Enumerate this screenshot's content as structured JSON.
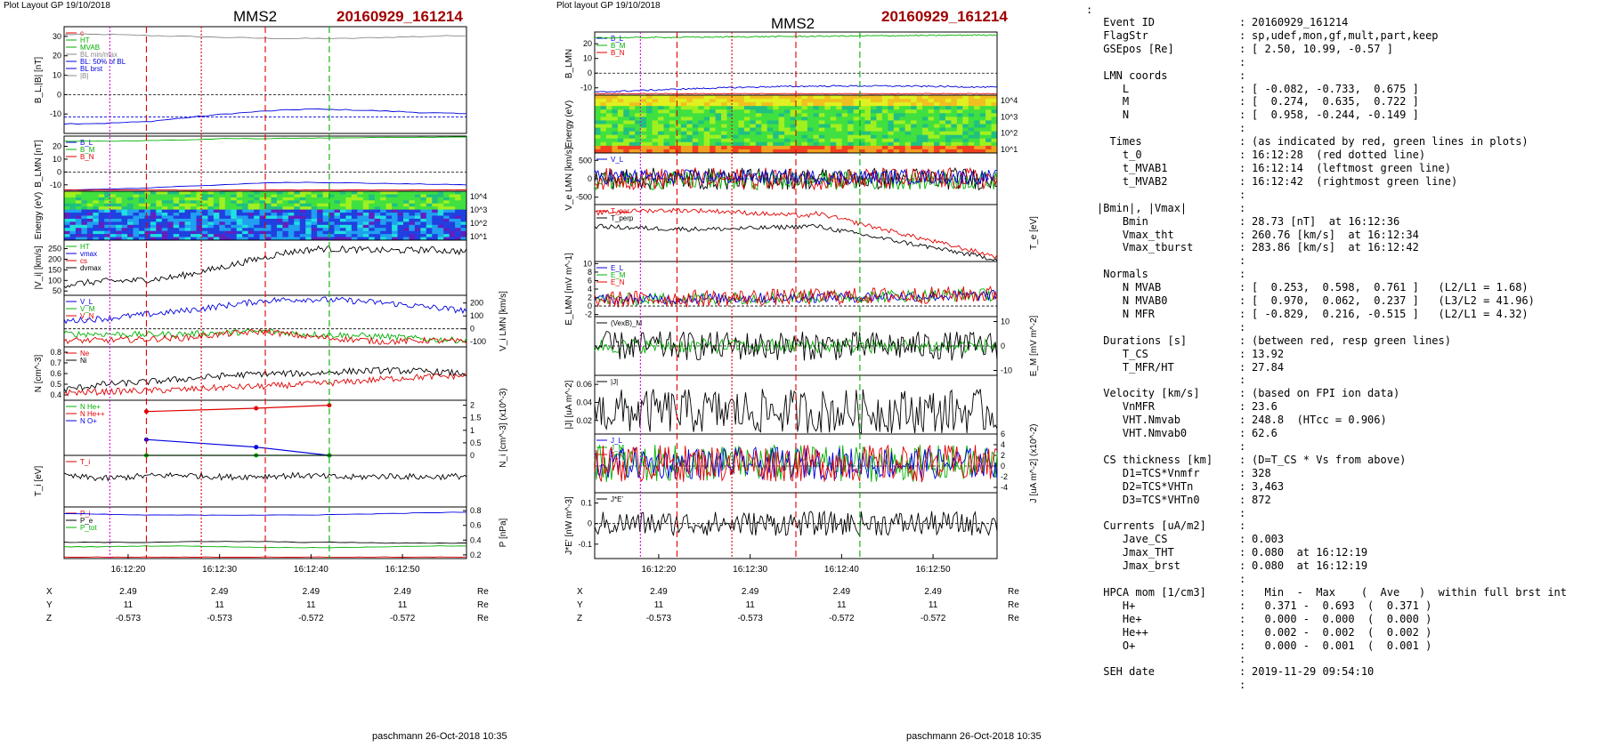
{
  "left": {
    "layout_label": "Plot Layout GP 19/10/2018",
    "spacecraft": "MMS2",
    "event": "20160929_161214",
    "footer": "paschmann 26-Oct-2018 10:35",
    "time_ticks": [
      "16:12:20",
      "16:12:30",
      "16:12:40",
      "16:12:50"
    ],
    "ephem": [
      {
        "name": "X",
        "values": [
          "2.49",
          "2.49",
          "2.49",
          "2.49"
        ],
        "unit": "Re"
      },
      {
        "name": "Y",
        "values": [
          "11",
          "11",
          "11",
          "11"
        ],
        "unit": "Re"
      },
      {
        "name": "Z",
        "values": [
          "-0.573",
          "-0.573",
          "-0.572",
          "-0.572"
        ],
        "unit": "Re"
      }
    ]
  },
  "right": {
    "layout_label": "Plot layout GP 19/10/2018",
    "spacecraft": "MMS2",
    "event": "20160929_161214",
    "footer": "paschmann 26-Oct-2018 10:35",
    "time_ticks": [
      "16:12:20",
      "16:12:30",
      "16:12:40",
      "16:12:50"
    ],
    "ephem": [
      {
        "name": "X",
        "values": [
          "2.49",
          "2.49",
          "2.49",
          "2.49"
        ],
        "unit": "Re"
      },
      {
        "name": "Y",
        "values": [
          "11",
          "11",
          "11",
          "11"
        ],
        "unit": "Re"
      },
      {
        "name": "Z",
        "values": [
          "-0.573",
          "-0.573",
          "-0.572",
          "-0.572"
        ],
        "unit": "Re"
      }
    ]
  },
  "summary_marker": ":",
  "summary": [
    {
      "k": " Event ID",
      "v": "20160929_161214"
    },
    {
      "k": " FlagStr",
      "v": "sp,udef,mon,gf,mult,part,keep"
    },
    {
      "k": " GSEpos [Re]",
      "v": "[ 2.50, 10.99, -0.57 ]"
    },
    {
      "k": "",
      "v": ""
    },
    {
      "k": " LMN coords",
      "v": ""
    },
    {
      "k": "    L",
      "v": "[ -0.082, -0.733,  0.675 ]"
    },
    {
      "k": "    M",
      "v": "[  0.274,  0.635,  0.722 ]"
    },
    {
      "k": "    N",
      "v": "[  0.958, -0.244, -0.149 ]"
    },
    {
      "k": "",
      "v": ""
    },
    {
      "k": "  Times",
      "v": "(as indicated by red, green lines in plots)"
    },
    {
      "k": "    t_0",
      "v": "16:12:28  (red dotted line)"
    },
    {
      "k": "    t_MVAB1",
      "v": "16:12:14  (leftmost green line)"
    },
    {
      "k": "    t_MVAB2",
      "v": "16:12:42  (rightmost green line)"
    },
    {
      "k": "",
      "v": ""
    },
    {
      "k": "|Bmin|, |Vmax|",
      "v": ""
    },
    {
      "k": "    Bmin",
      "v": "28.73 [nT]  at 16:12:36"
    },
    {
      "k": "    Vmax_tht",
      "v": "260.76 [km/s]  at 16:12:34"
    },
    {
      "k": "    Vmax_tburst",
      "v": "283.86 [km/s]  at 16:12:42"
    },
    {
      "k": "",
      "v": ""
    },
    {
      "k": " Normals",
      "v": ""
    },
    {
      "k": "    N MVAB",
      "v": "[  0.253,  0.598,  0.761 ]   (L2/L1 = 1.68)"
    },
    {
      "k": "    N MVAB0",
      "v": "[  0.970,  0.062,  0.237 ]   (L3/L2 = 41.96)"
    },
    {
      "k": "    N MFR",
      "v": "[ -0.829,  0.216, -0.515 ]   (L2/L1 = 4.32)"
    },
    {
      "k": "",
      "v": ""
    },
    {
      "k": " Durations [s]",
      "v": "(between red, resp green lines)"
    },
    {
      "k": "    T_CS",
      "v": "13.92"
    },
    {
      "k": "    T_MFR/HT",
      "v": "27.84"
    },
    {
      "k": "",
      "v": ""
    },
    {
      "k": " Velocity [km/s]",
      "v": "(based on FPI ion data)"
    },
    {
      "k": "    VnMFR",
      "v": "23.6"
    },
    {
      "k": "    VHT.Nmvab",
      "v": "248.8  (HTcc = 0.906)"
    },
    {
      "k": "    VHT.Nmvab0",
      "v": "62.6"
    },
    {
      "k": "",
      "v": ""
    },
    {
      "k": " CS thickness [km]",
      "v": "(D=T_CS * Vs from above)"
    },
    {
      "k": "    D1=TCS*Vnmfr",
      "v": "328"
    },
    {
      "k": "    D2=TCS*VHTn",
      "v": "3,463"
    },
    {
      "k": "    D3=TCS*VHTn0",
      "v": "872"
    },
    {
      "k": "",
      "v": ""
    },
    {
      "k": " Currents [uA/m2]",
      "v": ""
    },
    {
      "k": "    Jave_CS",
      "v": "0.003"
    },
    {
      "k": "    Jmax_THT",
      "v": "0.080  at 16:12:19"
    },
    {
      "k": "    Jmax_brst",
      "v": "0.080  at 16:12:19"
    },
    {
      "k": "",
      "v": ""
    },
    {
      "k": " HPCA mom [1/cm3]",
      "v": "  Min  -  Max    (  Ave   )  within full brst int"
    },
    {
      "k": "    H+",
      "v": "  0.371 -  0.693  (  0.371 )"
    },
    {
      "k": "    He+",
      "v": "  0.000 -  0.000  (  0.000 )"
    },
    {
      "k": "    He++",
      "v": "  0.002 -  0.002  (  0.002 )"
    },
    {
      "k": "    O+",
      "v": "  0.000 -  0.001  (  0.001 )"
    },
    {
      "k": "",
      "v": ""
    },
    {
      "k": " SEH date",
      "v": "2019-11-29 09:54:10"
    },
    {
      "k": "",
      "v": ""
    }
  ],
  "colors": {
    "red": "#e00000",
    "green": "#00b000",
    "blue": "#0000e0",
    "magenta": "#e000e0",
    "black": "#000000",
    "event": "#a00000"
  },
  "chart_data": [
    {
      "type": "line",
      "title": "MMS2 20160929_161214",
      "xlabel": "",
      "xlim": [
        "16:12:13",
        "16:12:57"
      ],
      "markers": {
        "magenta_dotted": "16:12:18",
        "red_dashed_1": "16:12:22",
        "red_dotted": "16:12:28",
        "red_dashed_2": "16:12:35",
        "gray_dashed": "16:12:36",
        "green_dashed": "16:12:42"
      },
      "panels": [
        {
          "id": "bl",
          "ylabel": "B_L,|B| [nT]",
          "ylim": [
            -20,
            35
          ],
          "yticks": [
            30,
            20,
            10,
            0,
            -10
          ],
          "legend": [
            "c",
            "HT",
            "MVAB",
            "BL min/max",
            "BL: 50% of BL",
            "BL brst",
            "|B|"
          ],
          "series": [
            {
              "name": "|B|",
              "color": "gray",
              "values": [
                31,
                31,
                30.5,
                30,
                29.5,
                29,
                28.9,
                28.9,
                29.5,
                30,
                30.5
              ]
            },
            {
              "name": "B_L brst",
              "color": "blue",
              "values": [
                -15,
                -14.8,
                -14,
                -12,
                -10,
                -8.5,
                -7.5,
                -7.8,
                -8.5,
                -9.3,
                -10
              ]
            }
          ],
          "hlines": [
            0,
            -11.5
          ]
        },
        {
          "id": "blmn",
          "ylabel": "B_LMN [nT]",
          "ylim": [
            -15,
            28
          ],
          "yticks": [
            20,
            10,
            0,
            -10
          ],
          "legend": [
            "B_L",
            "B_M",
            "B_N"
          ],
          "series": [
            {
              "name": "B_L",
              "color": "blue",
              "values": [
                -14,
                -13.5,
                -12.5,
                -11,
                -10,
                -8.5,
                -8,
                -8.5,
                -9,
                -9.5,
                -10
              ]
            },
            {
              "name": "B_M",
              "color": "green",
              "values": [
                24,
                24,
                24.5,
                25,
                26,
                26,
                26.5,
                26.5,
                27,
                27,
                27.5
              ]
            },
            {
              "name": "B_N",
              "color": "red",
              "values": [
                -14,
                -14,
                -14,
                -14,
                -14,
                -14,
                -14,
                -14,
                -14,
                -14,
                -14
              ]
            }
          ]
        },
        {
          "id": "spec",
          "type": "heatmap",
          "ylabel": "Energy (eV)",
          "yticks": [
            "10^4",
            "10^3",
            "10^2",
            "10^1"
          ]
        },
        {
          "id": "vi",
          "ylabel": "|V_i| [km/s]",
          "ylim": [
            30,
            290
          ],
          "yticks": [
            250,
            200,
            150,
            100,
            50
          ],
          "legend": [
            "HT",
            "vmax",
            "cs",
            "dvmax"
          ],
          "series": [
            {
              "name": "|V_i|",
              "color": "black",
              "values": [
                80,
                95,
                100,
                115,
                150,
                190,
                230,
                250,
                245,
                240,
                245,
                235
              ]
            }
          ]
        },
        {
          "id": "vlmn",
          "ylabel": "V_i LMN [km/s]",
          "ylim": [
            -140,
            260
          ],
          "yticks": [
            200,
            100,
            0,
            -100
          ],
          "legend": [
            "V_L",
            "V_M",
            "V_N"
          ],
          "series": [
            {
              "name": "V_L",
              "color": "blue",
              "values": [
                60,
                80,
                110,
                140,
                180,
                220,
                230,
                220,
                200,
                170,
                140
              ]
            },
            {
              "name": "V_M",
              "color": "green",
              "values": [
                -40,
                -40,
                -45,
                -40,
                -30,
                -20,
                -40,
                -50,
                -60,
                -80,
                -90
              ]
            },
            {
              "name": "V_N",
              "color": "red",
              "values": [
                -90,
                -90,
                -80,
                -70,
                -40,
                -20,
                -60,
                -80,
                -100,
                -90,
                -100
              ]
            }
          ]
        },
        {
          "id": "n",
          "ylabel": "N [cm^-3]",
          "ylim": [
            0.35,
            0.85
          ],
          "yticks": [
            0.8,
            0.7,
            0.6,
            0.5,
            0.4
          ],
          "legend": [
            "Ne",
            "Ni"
          ],
          "series": [
            {
              "name": "Ne",
              "color": "red",
              "values": [
                0.42,
                0.43,
                0.44,
                0.45,
                0.47,
                0.48,
                0.5,
                0.52,
                0.55,
                0.57,
                0.58
              ]
            },
            {
              "name": "Ni",
              "color": "black",
              "values": [
                0.45,
                0.5,
                0.52,
                0.55,
                0.58,
                0.6,
                0.6,
                0.62,
                0.63,
                0.62,
                0.6
              ]
            }
          ]
        },
        {
          "id": "hpca",
          "ylabel": "N_i [cm^-3] (x10^-3)",
          "ylim": [
            0,
            2.2
          ],
          "yticks": [
            2.0,
            1.5,
            1.0,
            0.5,
            0.0
          ],
          "legend": [
            "N He+",
            "N He++",
            "N O+"
          ],
          "series": [
            {
              "name": "N He++",
              "color": "red",
              "x": [
                "16:12:22",
                "16:12:34",
                "16:12:42"
              ],
              "values": [
                1.75,
                1.88,
                2.0
              ]
            },
            {
              "name": "N O+",
              "color": "blue",
              "x": [
                "16:12:22",
                "16:12:34",
                "16:12:42"
              ],
              "values": [
                0.63,
                0.33,
                0.0
              ]
            },
            {
              "name": "N He+",
              "color": "green",
              "x": [
                "16:12:22",
                "16:12:34",
                "16:12:42"
              ],
              "values": [
                0,
                0,
                0
              ]
            }
          ]
        },
        {
          "id": "ti",
          "ylabel": "T_i [eV]",
          "legend": [
            "T_i"
          ],
          "series": [
            {
              "name": "T_i",
              "color": "black",
              "values": [
                0.6,
                0.55,
                0.6,
                0.62,
                0.58,
                0.6,
                0.61,
                0.57,
                0.6,
                0.58,
                0.6
              ]
            }
          ]
        },
        {
          "id": "p",
          "ylabel": "P [nPa]",
          "ylim": [
            0.15,
            0.85
          ],
          "yticks": [
            0.8,
            0.6,
            0.4,
            0.2
          ],
          "legend": [
            "P_i",
            "P_e",
            "P_tot"
          ],
          "series": [
            {
              "name": "P_i",
              "color": "blue",
              "values": [
                0.76,
                0.75,
                0.74,
                0.74,
                0.74,
                0.74,
                0.74,
                0.75,
                0.76,
                0.77,
                0.78
              ]
            },
            {
              "name": "P_tot",
              "color": "green",
              "values": [
                0.31,
                0.31,
                0.32,
                0.32,
                0.31,
                0.3,
                0.3,
                0.3,
                0.31,
                0.32,
                0.32
              ]
            },
            {
              "name": "P_e",
              "color": "black",
              "values": [
                0.37,
                0.37,
                0.37,
                0.38,
                0.38,
                0.38,
                0.37,
                0.37,
                0.36,
                0.36,
                0.36
              ]
            },
            {
              "name": "P",
              "color": "red",
              "values": [
                0.17,
                0.17,
                0.17,
                0.17,
                0.17,
                0.17,
                0.17,
                0.17,
                0.17,
                0.17,
                0.17
              ]
            }
          ]
        }
      ]
    },
    {
      "type": "line",
      "title": "MMS2 20160929_161214",
      "xlabel": "",
      "xlim": [
        "16:12:13",
        "16:12:57"
      ],
      "panels": [
        {
          "id": "blmn",
          "ylabel": "B_LMN",
          "ylim": [
            -15,
            28
          ],
          "yticks": [
            20,
            10,
            0,
            -10
          ],
          "legend": [
            "B_L",
            "B_M",
            "B_N"
          ]
        },
        {
          "id": "espec",
          "type": "heatmap",
          "ylabel": "Energy (eV)",
          "yticks": [
            "10^4",
            "10^3",
            "10^2",
            "10^1"
          ]
        },
        {
          "id": "ve",
          "ylabel": "V_e LMN [km/s]",
          "ylim": [
            -700,
            700
          ],
          "yticks": [
            500,
            0,
            -500
          ],
          "legend": [
            "V_L"
          ]
        },
        {
          "id": "te",
          "ylabel": "T_e [eV]",
          "yticks": [
            "10^3"
          ],
          "legend": [
            "T_par",
            "T_perp"
          ]
        },
        {
          "id": "e",
          "ylabel": "E_LMN [mV m^-1]",
          "ylim": [
            -2.5,
            10.5
          ],
          "yticks": [
            10,
            8,
            6,
            4,
            2,
            0,
            -2
          ],
          "legend": [
            "E_L",
            "E_M",
            "E_N"
          ]
        },
        {
          "id": "em",
          "ylabel": "E_M [mV m^-2]",
          "ylim": [
            -12,
            12
          ],
          "yticks": [
            10,
            0,
            -10
          ],
          "legend": [
            "(VexB)_M"
          ]
        },
        {
          "id": "j",
          "ylabel": "|J| [uA m^-2]",
          "ylim": [
            0.005,
            0.07
          ],
          "yticks": [
            0.06,
            0.04,
            0.02
          ],
          "legend": [
            "|J|"
          ]
        },
        {
          "id": "jlmn",
          "ylabel": "J [uA m^-2] (x10^-2)",
          "ylim": [
            -5,
            6
          ],
          "yticks": [
            6,
            4,
            2,
            0,
            -2,
            -4
          ],
          "legend": [
            "J_L",
            "J_M",
            "J_N"
          ]
        },
        {
          "id": "je",
          "ylabel": "J*E' [nW m^-3]",
          "ylim": [
            -0.17,
            0.15
          ],
          "yticks": [
            0.1,
            0.0,
            -0.1
          ],
          "legend": [
            "J*E'"
          ]
        }
      ]
    }
  ]
}
